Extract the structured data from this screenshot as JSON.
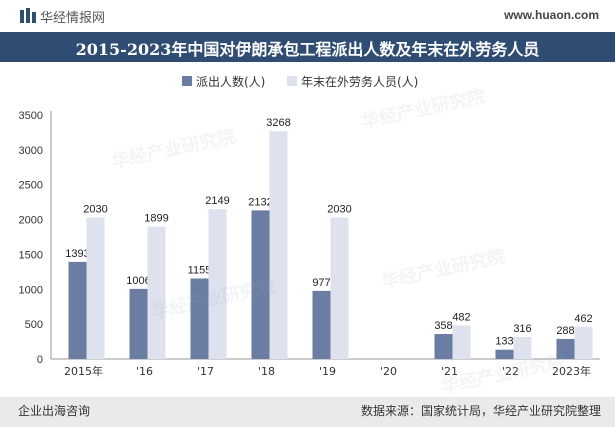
{
  "header": {
    "brand": "华经情报网",
    "site": "www.huaon.com",
    "title": "2015-2023年中国对伊朗承包工程派出人数及年末在外劳务人员"
  },
  "watermark": "华经产业研究院",
  "footer": {
    "left": "企业出海咨询",
    "right": "数据来源：国家统计局，华经产业研究院整理"
  },
  "colors": {
    "series1": "#6b7da3",
    "series2": "#dde2ee",
    "title_bg": "#2f4c73",
    "footer_bg": "#e9eaec"
  },
  "chart_data": {
    "type": "bar",
    "title": "2015-2023年中国对伊朗承包工程派出人数及年末在外劳务人员",
    "categories": [
      "2015年",
      "'16",
      "'17",
      "'18",
      "'19",
      "'20",
      "'21",
      "'22",
      "2023年"
    ],
    "series": [
      {
        "name": "派出人数(人)",
        "values": [
          1393,
          1006,
          1155,
          2132,
          977,
          null,
          358,
          133,
          288
        ]
      },
      {
        "name": "年末在外劳务人员(人)",
        "values": [
          2030,
          1899,
          2149,
          3268,
          2030,
          null,
          482,
          316,
          462
        ]
      }
    ],
    "ylim": [
      0,
      3500
    ],
    "yticks": [
      0,
      500,
      1000,
      1500,
      2000,
      2500,
      3000,
      3500
    ],
    "legend_position": "top-center",
    "grid": false
  }
}
